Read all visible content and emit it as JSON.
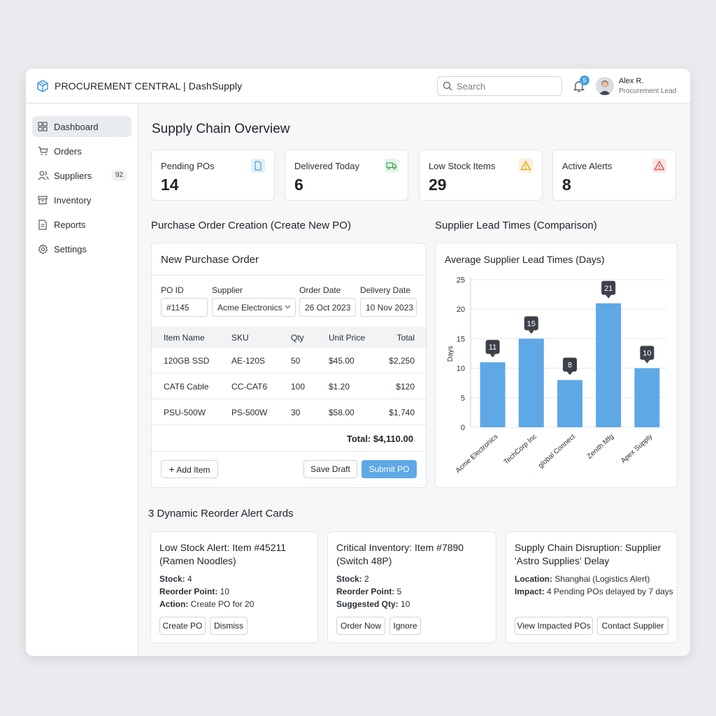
{
  "header": {
    "app_title": "PROCUREMENT CENTRAL | DashSupply",
    "search_placeholder": "Search",
    "notification_count": "5",
    "user_name": "Alex R.",
    "user_role": "Procurement Lead"
  },
  "sidebar": {
    "items": [
      {
        "label": "Dashboard",
        "icon": "grid-icon",
        "active": true
      },
      {
        "label": "Orders",
        "icon": "cart-icon"
      },
      {
        "label": "Suppliers",
        "icon": "users-icon",
        "badge": "92"
      },
      {
        "label": "Inventory",
        "icon": "box-icon"
      },
      {
        "label": "Reports",
        "icon": "document-icon"
      },
      {
        "label": "Settings",
        "icon": "gear-icon"
      }
    ]
  },
  "main": {
    "title": "Supply Chain Overview",
    "stats": [
      {
        "label": "Pending POs",
        "value": "14",
        "icon": "document-icon",
        "color": "#4a9ee0"
      },
      {
        "label": "Delivered Today",
        "value": "6",
        "icon": "truck-icon",
        "color": "#3ea35a"
      },
      {
        "label": "Low Stock Items",
        "value": "29",
        "icon": "warning-icon",
        "color": "#e0a21b"
      },
      {
        "label": "Active Alerts",
        "value": "8",
        "icon": "alert-icon",
        "color": "#d9534f"
      }
    ]
  },
  "po_section": {
    "heading": "Purchase Order Creation (Create New PO)",
    "card_title": "New Purchase Order",
    "fields": {
      "po_id_label": "PO ID",
      "po_id_value": "#1145",
      "supplier_label": "Supplier",
      "supplier_value": "Acme Electronics",
      "order_date_label": "Order Date",
      "order_date_value": "26 Oct 2023",
      "delivery_date_label": "Delivery Date",
      "delivery_date_value": "10 Nov 2023"
    },
    "columns": [
      "Item Name",
      "SKU",
      "Qty",
      "Unit Price",
      "Total"
    ],
    "rows": [
      [
        "120GB SSD",
        "AE-120S",
        "50",
        "$45.00",
        "$2,250"
      ],
      [
        "CAT6 Cable",
        "CC-CAT6",
        "100",
        "$1.20",
        "$120"
      ],
      [
        "PSU-500W",
        "PS-500W",
        "30",
        "$58.00",
        "$1,740"
      ]
    ],
    "total": "Total: $4,110.00",
    "add_item": "Add Item",
    "save_draft": "Save Draft",
    "submit": "Submit PO"
  },
  "lead_section": {
    "heading": "Supplier Lead Times (Comparison)"
  },
  "chart_data": {
    "type": "bar",
    "title": "Average Supplier Lead Times (Days)",
    "xlabel": "",
    "ylabel": "Days",
    "categories": [
      "Acme Electronics",
      "TechCorp Inc",
      "global Connect",
      "Zenith Mfg",
      "Apex Supply"
    ],
    "values": [
      11,
      15,
      8,
      21,
      10
    ],
    "ylim": [
      0,
      25
    ],
    "yticks": [
      0,
      5,
      10,
      15,
      20,
      25
    ],
    "bar_color": "#5ea8e6",
    "grid": true
  },
  "alerts_section": {
    "heading": "3 Dynamic Reorder Alert Cards",
    "cards": [
      {
        "title": "Low Stock Alert: Item #45211 (Ramen Noodles)",
        "l1_key": "Stock:",
        "l1_val": " 4",
        "l2_key": "Reorder Point:",
        "l2_val": " 10",
        "l3_key": "Action:",
        "l3_val": " Create PO for 20",
        "btn1": "Create PO",
        "btn2": "Dismiss"
      },
      {
        "title": "Critical Inventory: Item #7890 (Switch 48P)",
        "l1_key": "Stock:",
        "l1_val": " 2",
        "l2_key": "Reorder Point:",
        "l2_val": " 5",
        "l3_key": "Suggested Qty:",
        "l3_val": " 10",
        "btn1": "Order Now",
        "btn2": "Ignore"
      },
      {
        "title": "Supply Chain Disruption: Supplier 'Astro Supplies' Delay",
        "l1_key": "Location:",
        "l1_val": " Shanghai (Logistics Alert)",
        "l2_key": "Impact:",
        "l2_val": " 4 Pending POs delayed by 7 days",
        "btn1": "View Impacted POs",
        "btn2": "Contact Supplier"
      }
    ]
  }
}
